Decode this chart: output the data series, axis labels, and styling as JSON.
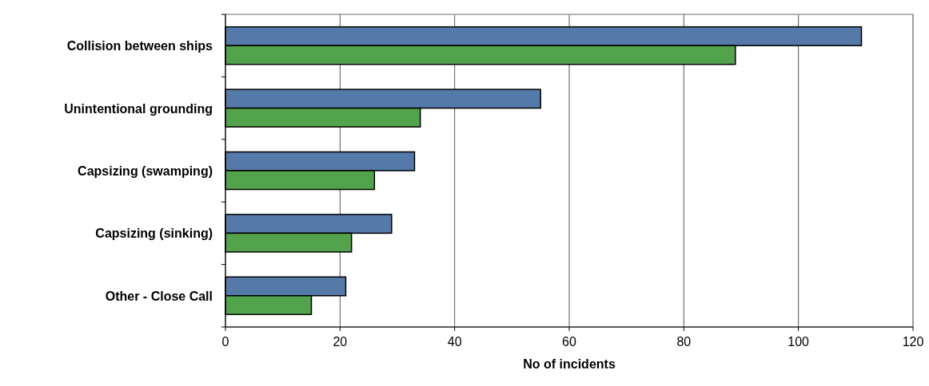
{
  "chart_data": {
    "type": "bar",
    "orientation": "horizontal",
    "xlabel": "No of incidents",
    "categories": [
      "Collision between ships",
      "Unintentional grounding",
      "Capsizing (swamping)",
      "Capsizing (sinking)",
      "Other - Close Call"
    ],
    "series": [
      {
        "color": "#5579a9",
        "values": [
          111,
          55,
          33,
          29,
          21
        ]
      },
      {
        "color": "#53a34c",
        "values": [
          89,
          34,
          26,
          22,
          15
        ]
      }
    ],
    "xlim": [
      0,
      120
    ],
    "xticks": [
      0,
      20,
      40,
      60,
      80,
      100,
      120
    ],
    "grid": "x"
  }
}
